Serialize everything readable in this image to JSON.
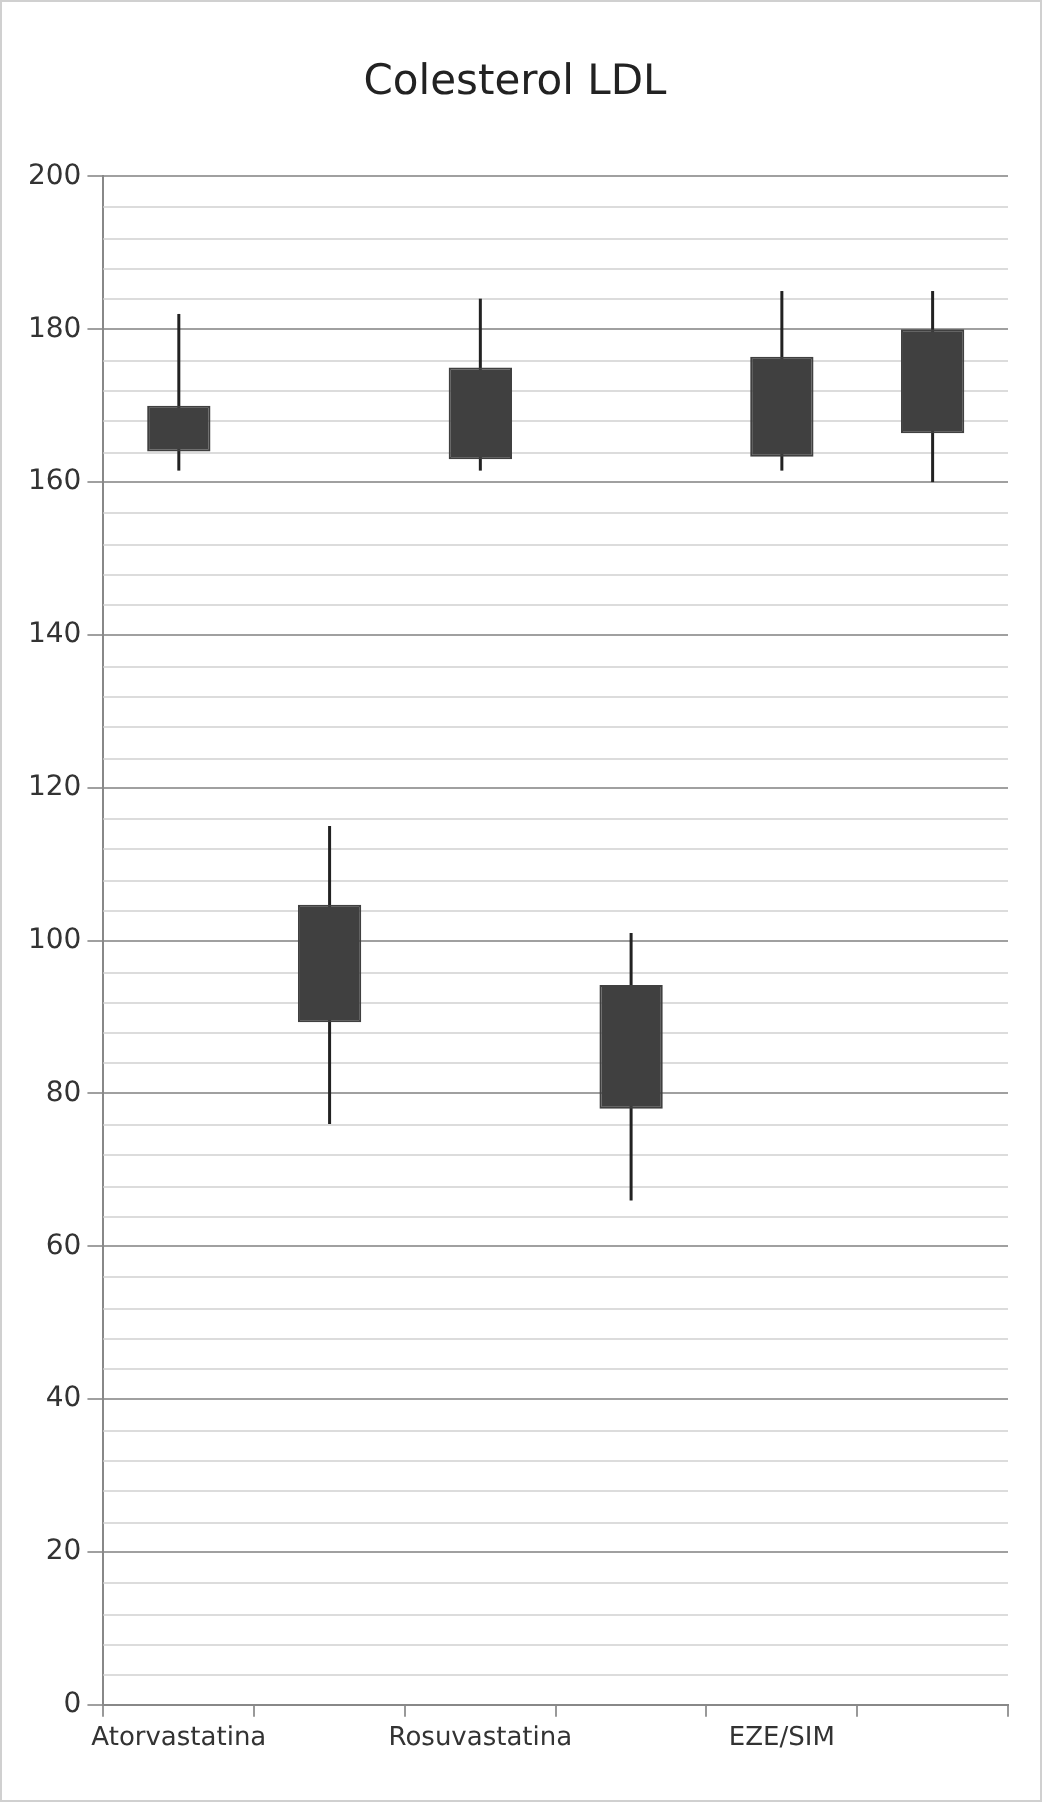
{
  "chart_data": {
    "type": "candlestick",
    "title": "Colesterol LDL",
    "categories": [
      "Atorvastatina",
      null,
      "Rosuvastatina",
      null,
      "EZE/SIM",
      null
    ],
    "ohlc": [
      [
        170,
        182,
        161.5,
        164
      ],
      [
        104.7,
        115,
        76,
        89.3
      ],
      [
        175,
        184,
        161.5,
        163
      ],
      [
        94.2,
        101,
        66,
        78
      ],
      [
        176.4,
        185,
        161.5,
        163.3
      ],
      [
        180,
        185,
        160,
        166.4
      ]
    ],
    "color": "#404040",
    "ylim": [
      0,
      200
    ],
    "yticks": [
      0,
      20,
      40,
      60,
      80,
      100,
      120,
      140,
      160,
      180,
      200
    ],
    "grid": "y"
  }
}
